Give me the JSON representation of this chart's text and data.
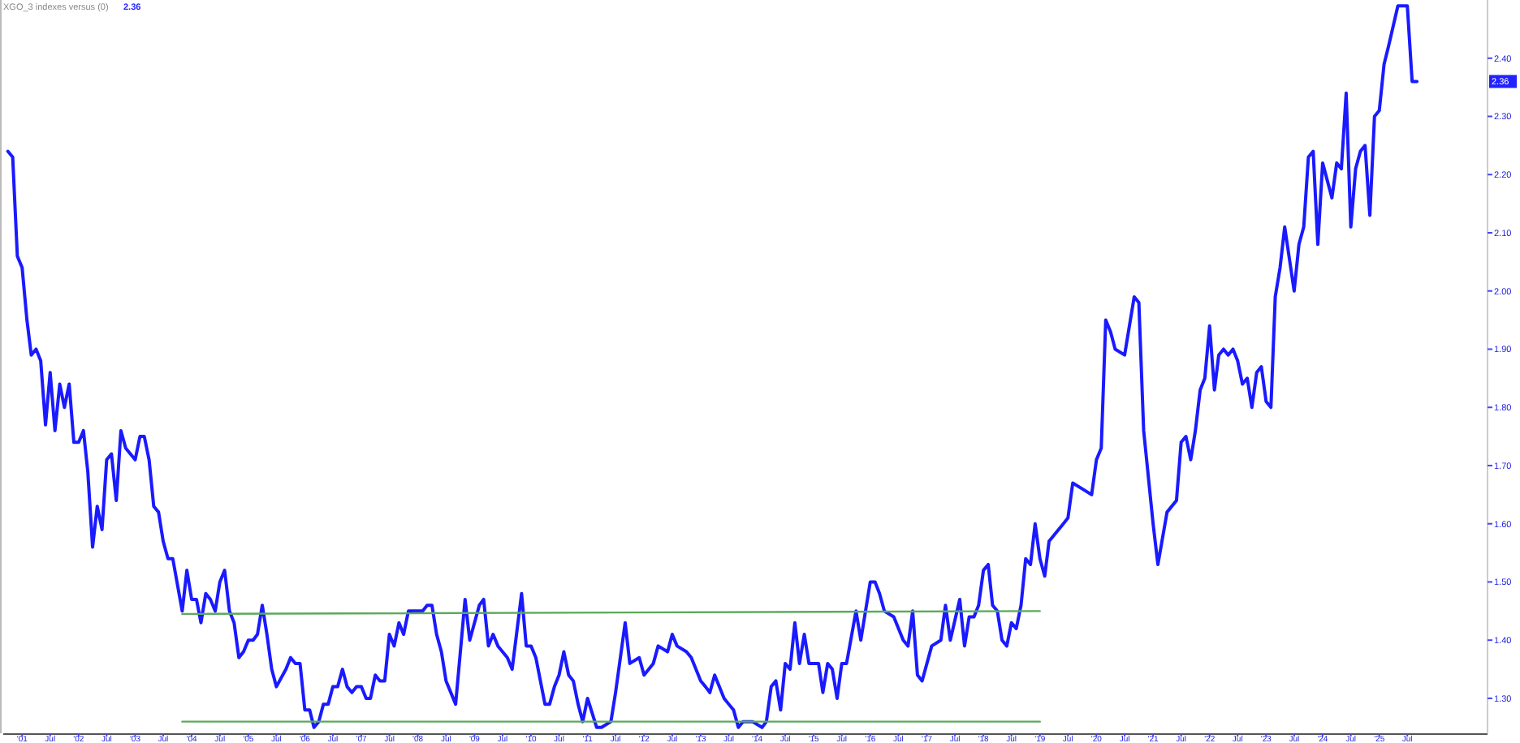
{
  "chart_data": {
    "type": "line",
    "title": "XGO_3 indexes versus (0)",
    "annotations": [
      "2.36",
      "2.36"
    ],
    "xlim": [
      "2000-09",
      "2026-12"
    ],
    "ylim": [
      1.24,
      2.5
    ],
    "yticks": [
      {
        "value": 1.3,
        "label": "1.30"
      },
      {
        "value": 1.4,
        "label": "1.40"
      },
      {
        "value": 1.5,
        "label": "1.50"
      },
      {
        "value": 1.6,
        "label": "1.60"
      },
      {
        "value": 1.7,
        "label": "1.70"
      },
      {
        "value": 1.8,
        "label": "1.80"
      },
      {
        "value": 1.9,
        "label": "1.90"
      },
      {
        "value": 2.0,
        "label": "2.00"
      },
      {
        "value": 2.1,
        "label": "2.10"
      },
      {
        "value": 2.2,
        "label": "2.20"
      },
      {
        "value": 2.3,
        "label": "2.30"
      },
      {
        "value": 2.4,
        "label": "2.40"
      }
    ],
    "xticks": [
      {
        "value": "2001-01",
        "label": "'01"
      },
      {
        "value": "2001-07",
        "label": "Jul"
      },
      {
        "value": "2002-01",
        "label": "'02"
      },
      {
        "value": "2002-07",
        "label": "Jul"
      },
      {
        "value": "2003-01",
        "label": "'03"
      },
      {
        "value": "2003-07",
        "label": "Jul"
      },
      {
        "value": "2004-01",
        "label": "'04"
      },
      {
        "value": "2004-07",
        "label": "Jul"
      },
      {
        "value": "2005-01",
        "label": "'05"
      },
      {
        "value": "2005-07",
        "label": "Jul"
      },
      {
        "value": "2006-01",
        "label": "'06"
      },
      {
        "value": "2006-07",
        "label": "Jul"
      },
      {
        "value": "2007-01",
        "label": "'07"
      },
      {
        "value": "2007-07",
        "label": "Jul"
      },
      {
        "value": "2008-01",
        "label": "'08"
      },
      {
        "value": "2008-07",
        "label": "Jul"
      },
      {
        "value": "2009-01",
        "label": "'09"
      },
      {
        "value": "2009-07",
        "label": "Jul"
      },
      {
        "value": "2010-01",
        "label": "'10"
      },
      {
        "value": "2010-07",
        "label": "Jul"
      },
      {
        "value": "2011-01",
        "label": "'11"
      },
      {
        "value": "2011-07",
        "label": "Jul"
      },
      {
        "value": "2012-01",
        "label": "'12"
      },
      {
        "value": "2012-07",
        "label": "Jul"
      },
      {
        "value": "2013-01",
        "label": "'13"
      },
      {
        "value": "2013-07",
        "label": "Jul"
      },
      {
        "value": "2014-01",
        "label": "'14"
      },
      {
        "value": "2014-07",
        "label": "Jul"
      },
      {
        "value": "2015-01",
        "label": "'15"
      },
      {
        "value": "2015-07",
        "label": "Jul"
      },
      {
        "value": "2016-01",
        "label": "'16"
      },
      {
        "value": "2016-07",
        "label": "Jul"
      },
      {
        "value": "2017-01",
        "label": "'17"
      },
      {
        "value": "2017-07",
        "label": "Jul"
      },
      {
        "value": "2018-01",
        "label": "'18"
      },
      {
        "value": "2018-07",
        "label": "Jul"
      },
      {
        "value": "2019-01",
        "label": "'19"
      },
      {
        "value": "2019-07",
        "label": "Jul"
      },
      {
        "value": "2020-01",
        "label": "'20"
      },
      {
        "value": "2020-07",
        "label": "Jul"
      },
      {
        "value": "2021-01",
        "label": "'21"
      },
      {
        "value": "2021-07",
        "label": "Jul"
      },
      {
        "value": "2022-01",
        "label": "'22"
      },
      {
        "value": "2022-07",
        "label": "Jul"
      },
      {
        "value": "2023-01",
        "label": "'23"
      },
      {
        "value": "2023-07",
        "label": "Jul"
      },
      {
        "value": "2024-01",
        "label": "'24"
      },
      {
        "value": "2024-07",
        "label": "Jul"
      },
      {
        "value": "2025-01",
        "label": "'25"
      },
      {
        "value": "2025-07",
        "label": "Jul"
      }
    ],
    "series": [
      {
        "color": "#1a1aff",
        "x": [
          "2000-10",
          "2000-11",
          "2000-12",
          "2001-01",
          "2001-02",
          "2001-03",
          "2001-04",
          "2001-05",
          "2001-06",
          "2001-07",
          "2001-08",
          "2001-09",
          "2001-10",
          "2001-11",
          "2001-12",
          "2002-01",
          "2002-02",
          "2002-03",
          "2002-04",
          "2002-05",
          "2002-06",
          "2002-07",
          "2002-08",
          "2002-09",
          "2002-10",
          "2002-11",
          "2003-01",
          "2003-02",
          "2003-03",
          "2003-04",
          "2003-05",
          "2003-06",
          "2003-07",
          "2003-08",
          "2003-09",
          "2003-11",
          "2003-12",
          "2004-01",
          "2004-02",
          "2004-03",
          "2004-04",
          "2004-05",
          "2004-06",
          "2004-07",
          "2004-08",
          "2004-09",
          "2004-10",
          "2004-11",
          "2004-12",
          "2005-01",
          "2005-02",
          "2005-03",
          "2005-04",
          "2005-05",
          "2005-06",
          "2005-07",
          "2005-09",
          "2005-10",
          "2005-11",
          "2005-12",
          "2006-01",
          "2006-02",
          "2006-03",
          "2006-04",
          "2006-05",
          "2006-06",
          "2006-07",
          "2006-08",
          "2006-09",
          "2006-10",
          "2006-11",
          "2006-12",
          "2007-01",
          "2007-02",
          "2007-03",
          "2007-04",
          "2007-05",
          "2007-06",
          "2007-07",
          "2007-08",
          "2007-09",
          "2007-10",
          "2007-11",
          "2007-12",
          "2008-02",
          "2008-03",
          "2008-04",
          "2008-05",
          "2008-06",
          "2008-07",
          "2008-09",
          "2008-11",
          "2008-12",
          "2009-02",
          "2009-03",
          "2009-04",
          "2009-05",
          "2009-06",
          "2009-07",
          "2009-08",
          "2009-09",
          "2009-11",
          "2009-12",
          "2010-01",
          "2010-02",
          "2010-04",
          "2010-05",
          "2010-06",
          "2010-07",
          "2010-08",
          "2010-09",
          "2010-10",
          "2010-11",
          "2010-12",
          "2011-01",
          "2011-03",
          "2011-04",
          "2011-06",
          "2011-07",
          "2011-09",
          "2011-10",
          "2011-12",
          "2012-01",
          "2012-03",
          "2012-04",
          "2012-06",
          "2012-07",
          "2012-08",
          "2012-10",
          "2012-11",
          "2013-01",
          "2013-02",
          "2013-03",
          "2013-04",
          "2013-06",
          "2013-07",
          "2013-08",
          "2013-09",
          "2013-10",
          "2013-11",
          "2013-12",
          "2014-02",
          "2014-03",
          "2014-04",
          "2014-05",
          "2014-06",
          "2014-07",
          "2014-08",
          "2014-09",
          "2014-10",
          "2014-11",
          "2014-12",
          "2015-02",
          "2015-03",
          "2015-04",
          "2015-05",
          "2015-06",
          "2015-07",
          "2015-08",
          "2015-10",
          "2015-11",
          "2016-01",
          "2016-02",
          "2016-03",
          "2016-04",
          "2016-06",
          "2016-08",
          "2016-09",
          "2016-10",
          "2016-11",
          "2016-12",
          "2017-02",
          "2017-04",
          "2017-05",
          "2017-06",
          "2017-08",
          "2017-09",
          "2017-10",
          "2017-11",
          "2017-12",
          "2018-01",
          "2018-02",
          "2018-03",
          "2018-04",
          "2018-05",
          "2018-06",
          "2018-07",
          "2018-08",
          "2018-09",
          "2018-10",
          "2018-11",
          "2018-12",
          "2019-01",
          "2019-02",
          "2019-03",
          "2019-04",
          "2019-05",
          "2019-06",
          "2019-07",
          "2019-08",
          "2019-10",
          "2019-12",
          "2020-01",
          "2020-02",
          "2020-03",
          "2020-04",
          "2020-05",
          "2020-07",
          "2020-09",
          "2020-10",
          "2020-11",
          "2021-01",
          "2021-02",
          "2021-04",
          "2021-06",
          "2021-07",
          "2021-08",
          "2021-09",
          "2021-10",
          "2021-11",
          "2021-12",
          "2022-01",
          "2022-02",
          "2022-03",
          "2022-04",
          "2022-05",
          "2022-06",
          "2022-07",
          "2022-08",
          "2022-09",
          "2022-10",
          "2022-11",
          "2022-12",
          "2023-01",
          "2023-02",
          "2023-03",
          "2023-04",
          "2023-05",
          "2023-07",
          "2023-08",
          "2023-09",
          "2023-10",
          "2023-11",
          "2023-12",
          "2024-01",
          "2024-03",
          "2024-04",
          "2024-05",
          "2024-06",
          "2024-07",
          "2024-08",
          "2024-09",
          "2024-10",
          "2024-11",
          "2024-12",
          "2025-01",
          "2025-02",
          "2025-03",
          "2025-05",
          "2025-07",
          "2025-08",
          "2025-09"
        ],
        "values": [
          2.24,
          2.23,
          2.06,
          2.04,
          1.95,
          1.89,
          1.9,
          1.88,
          1.77,
          1.86,
          1.76,
          1.84,
          1.8,
          1.84,
          1.74,
          1.74,
          1.76,
          1.69,
          1.56,
          1.63,
          1.59,
          1.71,
          1.72,
          1.64,
          1.76,
          1.73,
          1.71,
          1.75,
          1.75,
          1.71,
          1.63,
          1.62,
          1.57,
          1.54,
          1.54,
          1.45,
          1.52,
          1.47,
          1.47,
          1.43,
          1.48,
          1.47,
          1.45,
          1.5,
          1.52,
          1.45,
          1.43,
          1.37,
          1.38,
          1.4,
          1.4,
          1.41,
          1.46,
          1.41,
          1.35,
          1.32,
          1.35,
          1.37,
          1.36,
          1.36,
          1.28,
          1.28,
          1.25,
          1.26,
          1.29,
          1.29,
          1.32,
          1.32,
          1.35,
          1.32,
          1.31,
          1.32,
          1.32,
          1.3,
          1.3,
          1.34,
          1.33,
          1.33,
          1.41,
          1.39,
          1.43,
          1.41,
          1.45,
          1.45,
          1.45,
          1.46,
          1.46,
          1.41,
          1.38,
          1.33,
          1.29,
          1.47,
          1.4,
          1.46,
          1.47,
          1.39,
          1.41,
          1.39,
          1.38,
          1.37,
          1.35,
          1.48,
          1.39,
          1.39,
          1.37,
          1.29,
          1.29,
          1.32,
          1.34,
          1.38,
          1.34,
          1.33,
          1.29,
          1.26,
          1.3,
          1.25,
          1.25,
          1.26,
          1.31,
          1.43,
          1.36,
          1.37,
          1.34,
          1.36,
          1.39,
          1.38,
          1.41,
          1.39,
          1.38,
          1.37,
          1.33,
          1.32,
          1.31,
          1.34,
          1.3,
          1.29,
          1.28,
          1.25,
          1.26,
          1.26,
          1.26,
          1.25,
          1.26,
          1.32,
          1.33,
          1.28,
          1.36,
          1.35,
          1.43,
          1.36,
          1.41,
          1.36,
          1.36,
          1.31,
          1.36,
          1.35,
          1.3,
          1.36,
          1.36,
          1.45,
          1.4,
          1.5,
          1.5,
          1.48,
          1.45,
          1.44,
          1.4,
          1.39,
          1.45,
          1.34,
          1.33,
          1.39,
          1.4,
          1.46,
          1.4,
          1.47,
          1.39,
          1.44,
          1.44,
          1.46,
          1.52,
          1.53,
          1.46,
          1.45,
          1.4,
          1.39,
          1.43,
          1.42,
          1.46,
          1.54,
          1.53,
          1.6,
          1.54,
          1.51,
          1.57,
          1.58,
          1.59,
          1.6,
          1.61,
          1.67,
          1.66,
          1.65,
          1.71,
          1.73,
          1.95,
          1.93,
          1.9,
          1.89,
          1.99,
          1.98,
          1.76,
          1.6,
          1.53,
          1.62,
          1.64,
          1.74,
          1.75,
          1.71,
          1.76,
          1.83,
          1.85,
          1.94,
          1.83,
          1.89,
          1.9,
          1.89,
          1.9,
          1.88,
          1.84,
          1.85,
          1.8,
          1.86,
          1.87,
          1.81,
          1.8,
          1.99,
          2.04,
          2.11,
          2.0,
          2.08,
          2.11,
          2.23,
          2.24,
          2.08,
          2.22,
          2.16,
          2.22,
          2.21,
          2.34,
          2.11,
          2.21,
          2.24,
          2.25,
          2.13,
          2.3,
          2.31,
          2.39,
          2.42,
          2.49,
          2.49,
          2.36,
          2.36
        ]
      },
      {
        "color": "#5aaa5a",
        "x": [
          "2003-11",
          "2019-01"
        ],
        "values": [
          1.445,
          1.45
        ]
      },
      {
        "color": "#5aaa5a",
        "x": [
          "2003-11",
          "2019-01"
        ],
        "values": [
          1.26,
          1.26
        ]
      }
    ]
  }
}
